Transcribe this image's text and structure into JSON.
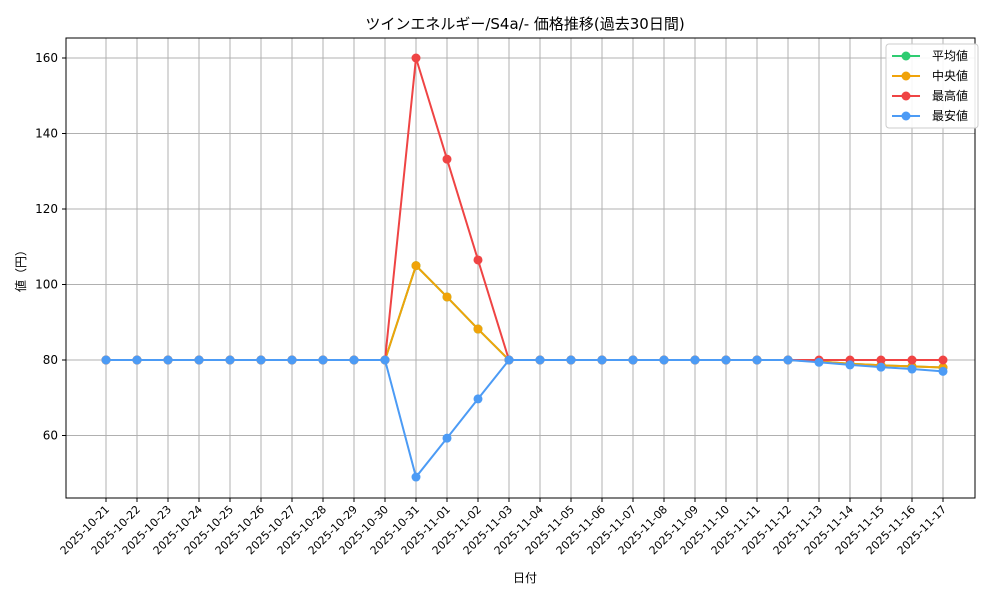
{
  "chart_data": {
    "type": "line",
    "title": "ツインエネルギー/S4a/- 価格推移(過去30日間)",
    "xlabel": "日付",
    "ylabel": "値（円）",
    "ylim": [
      43.6,
      165.5
    ],
    "yticks": [
      60,
      80,
      100,
      120,
      140,
      160
    ],
    "grid": true,
    "legend_position": "upper right",
    "categories": [
      "2025-10-21",
      "2025-10-22",
      "2025-10-23",
      "2025-10-24",
      "2025-10-25",
      "2025-10-26",
      "2025-10-27",
      "2025-10-28",
      "2025-10-29",
      "2025-10-30",
      "2025-10-31",
      "2025-11-01",
      "2025-11-02",
      "2025-11-03",
      "2025-11-04",
      "2025-11-05",
      "2025-11-06",
      "2025-11-07",
      "2025-11-08",
      "2025-11-09",
      "2025-11-10",
      "2025-11-11",
      "2025-11-12",
      "2025-11-13",
      "2025-11-14",
      "2025-11-15",
      "2025-11-16",
      "2025-11-17"
    ],
    "series": [
      {
        "name": "平均値",
        "color": "#2ecc71",
        "values": [
          80,
          80,
          80,
          80,
          80,
          80,
          80,
          80,
          80,
          80,
          105,
          96.7,
          88.2,
          80,
          80,
          80,
          80,
          80,
          80,
          80,
          80,
          80,
          80,
          79.6,
          79.0,
          78.6,
          78.3,
          78.0
        ]
      },
      {
        "name": "中央値",
        "color": "#f0a30a",
        "values": [
          80,
          80,
          80,
          80,
          80,
          80,
          80,
          80,
          80,
          80,
          105,
          96.7,
          88.2,
          80,
          80,
          80,
          80,
          80,
          80,
          80,
          80,
          80,
          80,
          79.6,
          79.0,
          78.6,
          78.3,
          78.0
        ]
      },
      {
        "name": "最高値",
        "color": "#ef4444",
        "values": [
          80,
          80,
          80,
          80,
          80,
          80,
          80,
          80,
          80,
          80,
          160,
          133.2,
          106.5,
          80,
          80,
          80,
          80,
          80,
          80,
          80,
          80,
          80,
          80,
          80,
          80,
          80,
          80,
          80
        ]
      },
      {
        "name": "最安値",
        "color": "#4c9bf5",
        "values": [
          80,
          80,
          80,
          80,
          80,
          80,
          80,
          80,
          80,
          80,
          49,
          59.3,
          69.7,
          80,
          80,
          80,
          80,
          80,
          80,
          80,
          80,
          80,
          80,
          79.4,
          78.7,
          78.1,
          77.6,
          77.0
        ]
      }
    ]
  }
}
